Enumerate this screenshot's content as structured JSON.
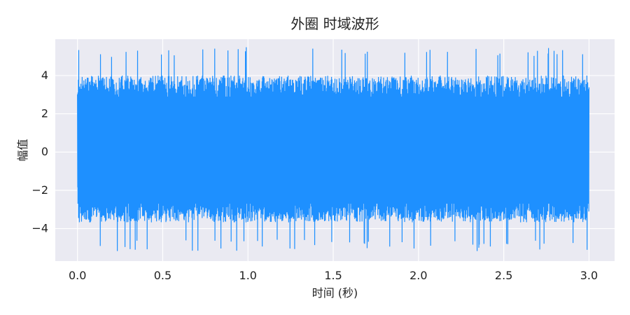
{
  "chart_data": {
    "type": "line",
    "title": "外圈 时域波形",
    "xlabel": "时间 (秒)",
    "ylabel": "幅值",
    "xlim": [
      -0.13,
      3.15
    ],
    "ylim": [
      -5.7,
      5.9
    ],
    "xticks": [
      0.0,
      0.5,
      1.0,
      1.5,
      2.0,
      2.5,
      3.0
    ],
    "xtick_labels": [
      "0.0",
      "0.5",
      "1.0",
      "1.5",
      "2.0",
      "2.5",
      "3.0"
    ],
    "yticks": [
      -4,
      -2,
      0,
      2,
      4
    ],
    "ytick_labels": [
      "−4",
      "−2",
      "0",
      "2",
      "4"
    ],
    "grid": true,
    "legend": "none",
    "series": [
      {
        "color": "#1e90ff",
        "x_start": 0.0,
        "x_end": 3.0,
        "y_min": -5.2,
        "y_max": 5.5,
        "typical_envelope": [
          -3.5,
          4.0
        ]
      }
    ],
    "colors": {
      "plot_background": "#eaeaf2",
      "grid": "#ffffff",
      "line": "#1e90ff"
    }
  }
}
